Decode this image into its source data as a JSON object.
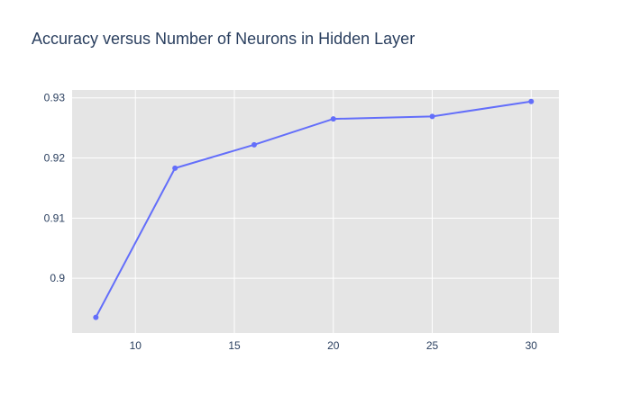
{
  "chart_data": {
    "type": "line",
    "title": "Accuracy versus Number of Neurons in Hidden Layer",
    "xlabel": "",
    "ylabel": "",
    "x": [
      8,
      12,
      16,
      20,
      25,
      30
    ],
    "series": [
      {
        "values": [
          0.8935,
          0.9183,
          0.9222,
          0.9265,
          0.9269,
          0.9294
        ]
      }
    ],
    "xlim": [
      6.8,
      31.4
    ],
    "ylim": [
      0.8909,
      0.9313
    ],
    "xticks": [
      10,
      15,
      20,
      25,
      30
    ],
    "yticks": [
      0.9,
      0.91,
      0.92,
      0.93
    ],
    "ytick_labels": [
      "0.9",
      "0.91",
      "0.92",
      "0.93"
    ],
    "grid": true,
    "legend": "none",
    "colors": {
      "line": "#636efa",
      "plot_bg": "#e5e5e5",
      "grid": "#ffffff",
      "text": "#2a3f5f"
    }
  }
}
